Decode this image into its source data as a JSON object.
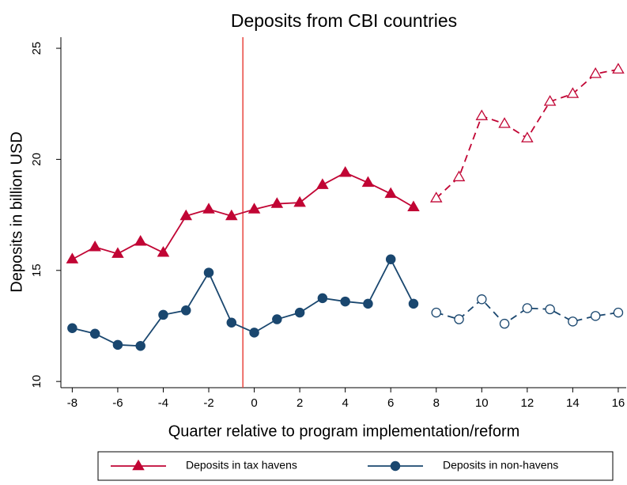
{
  "chart_data": {
    "type": "line",
    "title": "Deposits from CBI countries",
    "x_label": "Quarter relative to program implementation/reform",
    "y_label": "Deposits in billion USD",
    "x": [
      -8,
      -7,
      -6,
      -5,
      -4,
      -3,
      -2,
      -1,
      0,
      1,
      2,
      3,
      4,
      5,
      6,
      7,
      8,
      9,
      10,
      11,
      12,
      13,
      14,
      15,
      16
    ],
    "xlim": [
      -8.5,
      16.35
    ],
    "xticks": [
      -8,
      -6,
      -4,
      -2,
      0,
      2,
      4,
      6,
      8,
      10,
      12,
      14,
      16
    ],
    "ylim": [
      9.72,
      25.5
    ],
    "yticks": [
      10,
      15,
      20,
      25
    ],
    "vline": {
      "x": -0.5,
      "color": "#e8473f"
    },
    "legend": "bottom",
    "series": [
      {
        "name": "Deposits in tax havens",
        "color": "#c10534",
        "marker": "triangle",
        "style": "solid",
        "marker_fill": "filled",
        "values": [
          15.5,
          16.05,
          15.75,
          16.3,
          15.8,
          17.45,
          17.75,
          17.45,
          17.75,
          18.0,
          18.05,
          18.85,
          19.4,
          18.95,
          18.45,
          17.85,
          null,
          null,
          null,
          null,
          null,
          null,
          null,
          null,
          null
        ]
      },
      {
        "name": "Deposits in non-havens",
        "color": "#1a476f",
        "marker": "circle",
        "style": "solid",
        "marker_fill": "filled",
        "values": [
          12.4,
          12.15,
          11.65,
          11.6,
          13.0,
          13.2,
          14.9,
          12.65,
          12.2,
          12.8,
          13.1,
          13.75,
          13.6,
          13.5,
          15.5,
          13.5,
          null,
          null,
          null,
          null,
          null,
          null,
          null,
          null,
          null
        ]
      },
      {
        "color": "#c10534",
        "marker": "triangle",
        "style": "dashed",
        "marker_fill": "none",
        "values": [
          null,
          null,
          null,
          null,
          null,
          null,
          null,
          null,
          null,
          null,
          null,
          null,
          null,
          null,
          null,
          null,
          18.25,
          19.2,
          21.95,
          21.6,
          20.95,
          22.6,
          22.95,
          23.85,
          24.05
        ]
      },
      {
        "color": "#1a476f",
        "marker": "circle",
        "style": "dashed",
        "marker_fill": "none",
        "values": [
          null,
          null,
          null,
          null,
          null,
          null,
          null,
          null,
          null,
          null,
          null,
          null,
          null,
          null,
          null,
          null,
          13.1,
          12.8,
          13.7,
          12.6,
          13.3,
          13.25,
          12.7,
          12.95,
          13.1
        ]
      }
    ]
  }
}
